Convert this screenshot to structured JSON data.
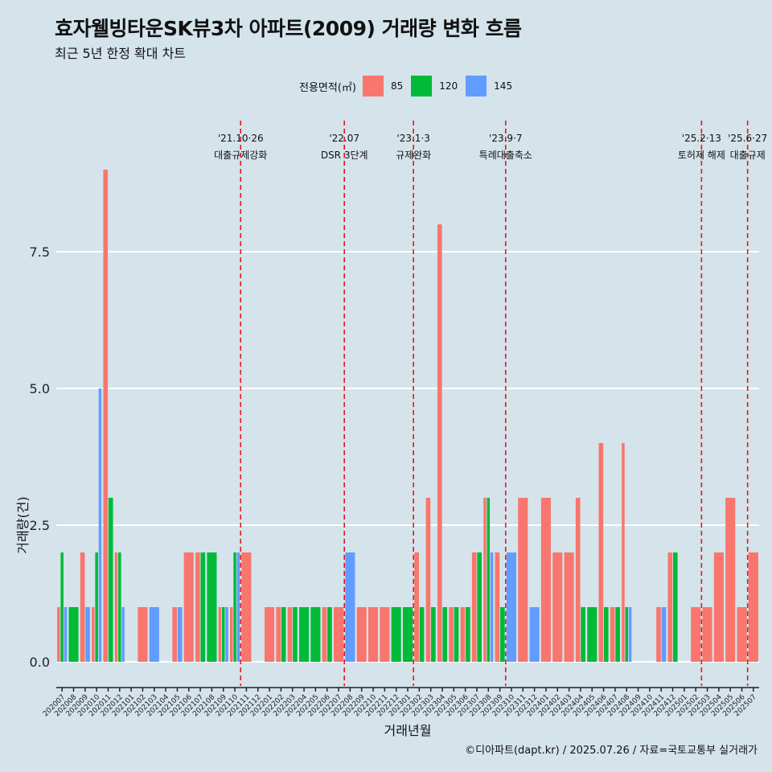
{
  "title": "효자웰빙타운SK뷰3차 아파트(2009) 거래량 변화 흐름",
  "subtitle": "최근 5년 한정 확대 차트",
  "legend": {
    "title": "전용면적(㎡)",
    "items": [
      {
        "label": "85",
        "color": "#f8766d"
      },
      {
        "label": "120",
        "color": "#00ba38"
      },
      {
        "label": "145",
        "color": "#619cff"
      }
    ]
  },
  "caption": "©디아파트(dapt.kr) / 2025.07.26 / 자료=국토교통부 실거래가",
  "chart_data": {
    "type": "bar",
    "xlabel": "거래년월",
    "ylabel": "거래량(건)",
    "ylim": [
      0,
      9
    ],
    "yticks": [
      0.0,
      2.5,
      5.0,
      7.5
    ],
    "ytick_labels": [
      "0.0",
      "2.5",
      "5.0",
      "7.5"
    ],
    "grid": true,
    "categories": [
      "202007",
      "202008",
      "202009",
      "202010",
      "202011",
      "202012",
      "202101",
      "202102",
      "202103",
      "202104",
      "202105",
      "202106",
      "202107",
      "202108",
      "202109",
      "202110",
      "202111",
      "202112",
      "202201",
      "202202",
      "202203",
      "202204",
      "202205",
      "202206",
      "202207",
      "202208",
      "202209",
      "202210",
      "202211",
      "202212",
      "202301",
      "202302",
      "202303",
      "202304",
      "202305",
      "202306",
      "202307",
      "202308",
      "202309",
      "202310",
      "202311",
      "202312",
      "202401",
      "202402",
      "202403",
      "202404",
      "202405",
      "202406",
      "202407",
      "202408",
      "202409",
      "202410",
      "202411",
      "202412",
      "202501",
      "202502",
      "202503",
      "202504",
      "202505",
      "202506",
      "202507"
    ],
    "series": [
      {
        "name": "85",
        "values": [
          1,
          0,
          2,
          1,
          9,
          2,
          0,
          1,
          0,
          0,
          1,
          2,
          2,
          0,
          1,
          1,
          2,
          0,
          1,
          1,
          1,
          0,
          0,
          1,
          1,
          0,
          1,
          1,
          1,
          0,
          0,
          2,
          3,
          8,
          1,
          1,
          2,
          3,
          2,
          0,
          3,
          0,
          3,
          2,
          2,
          3,
          0,
          4,
          1,
          4,
          0,
          0,
          1,
          2,
          0,
          1,
          1,
          2,
          3,
          1,
          2
        ]
      },
      {
        "name": "120",
        "values": [
          2,
          1,
          0,
          2,
          3,
          2,
          0,
          0,
          0,
          0,
          0,
          0,
          2,
          2,
          1,
          2,
          0,
          0,
          0,
          1,
          1,
          1,
          1,
          1,
          0,
          0,
          0,
          0,
          0,
          1,
          1,
          1,
          1,
          1,
          1,
          1,
          2,
          3,
          1,
          0,
          0,
          0,
          0,
          0,
          0,
          1,
          1,
          1,
          1,
          1,
          0,
          0,
          0,
          2,
          0,
          0,
          0,
          0,
          0,
          0,
          0
        ]
      },
      {
        "name": "145",
        "values": [
          1,
          0,
          1,
          5,
          0,
          1,
          0,
          0,
          1,
          0,
          1,
          0,
          0,
          0,
          1,
          2,
          0,
          0,
          0,
          0,
          0,
          0,
          0,
          0,
          0,
          2,
          0,
          0,
          0,
          0,
          0,
          0,
          0,
          0,
          0,
          0,
          0,
          2,
          0,
          2,
          0,
          1,
          0,
          0,
          0,
          0,
          0,
          0,
          0,
          1,
          0,
          0,
          1,
          0,
          0,
          0,
          0,
          0,
          0,
          0,
          0
        ]
      }
    ],
    "annotations": [
      {
        "after": "202110",
        "date": "'21.10·26",
        "label": "대출규제강화"
      },
      {
        "after": "202207",
        "date": "'22.07",
        "label": "DSR 3단계"
      },
      {
        "after": "202301",
        "date": "'23.1·3",
        "label": "규제완화"
      },
      {
        "after": "202309",
        "date": "'23.9·7",
        "label": "특례대출축소"
      },
      {
        "after": "202502",
        "date": "'25.2·13",
        "label": "토허제 해제"
      },
      {
        "after": "202506",
        "date": "'25.6·27",
        "label": "대출규제"
      }
    ]
  }
}
